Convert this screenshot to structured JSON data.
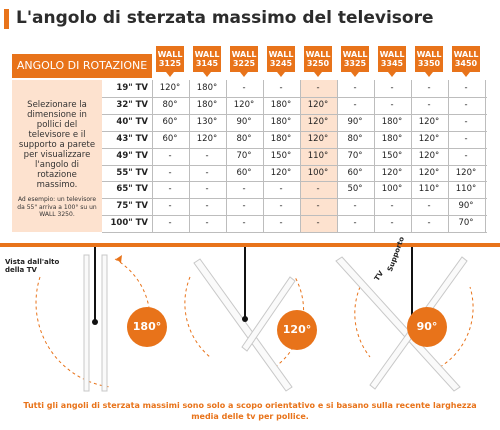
{
  "title": "L'angolo di sterzata massimo del televisore",
  "header_left": "ANGOLO DI ROTAZIONE",
  "walls": [
    {
      "line1": "WALL",
      "line2": "3125"
    },
    {
      "line1": "WALL",
      "line2": "3145"
    },
    {
      "line1": "WALL",
      "line2": "3225"
    },
    {
      "line1": "WALL",
      "line2": "3245"
    },
    {
      "line1": "WALL",
      "line2": "3250"
    },
    {
      "line1": "WALL",
      "line2": "3325"
    },
    {
      "line1": "WALL",
      "line2": "3345"
    },
    {
      "line1": "WALL",
      "line2": "3350"
    },
    {
      "line1": "WALL",
      "line2": "3450"
    }
  ],
  "highlight_index": 4,
  "description": "Selezionare la dimensione in pollici del televisore e il supporto a parete per visualizzare l'angolo di rotazione massimo.",
  "note": "Ad esempio: un televisore da 55\" arriva a 100° su un WALL 3250.",
  "rows": [
    {
      "size": "19\" TV",
      "values": [
        "120°",
        "180°",
        "-",
        "-",
        "-",
        "-",
        "-",
        "-",
        "-"
      ]
    },
    {
      "size": "32\" TV",
      "values": [
        "80°",
        "180°",
        "120°",
        "180°",
        "120°",
        "-",
        "-",
        "-",
        "-"
      ]
    },
    {
      "size": "40\" TV",
      "values": [
        "60°",
        "130°",
        "90°",
        "180°",
        "120°",
        "90°",
        "180°",
        "120°",
        "-"
      ]
    },
    {
      "size": "43\" TV",
      "values": [
        "60°",
        "120°",
        "80°",
        "180°",
        "120°",
        "80°",
        "180°",
        "120°",
        "-"
      ]
    },
    {
      "size": "49\" TV",
      "values": [
        "-",
        "-",
        "70°",
        "150°",
        "110°",
        "70°",
        "150°",
        "120°",
        "-"
      ]
    },
    {
      "size": "55\" TV",
      "values": [
        "-",
        "-",
        "60°",
        "120°",
        "100°",
        "60°",
        "120°",
        "120°",
        "120°"
      ]
    },
    {
      "size": "65\" TV",
      "values": [
        "-",
        "-",
        "-",
        "-",
        "-",
        "50°",
        "100°",
        "110°",
        "110°"
      ]
    },
    {
      "size": "75\" TV",
      "values": [
        "-",
        "-",
        "-",
        "-",
        "-",
        "-",
        "-",
        "-",
        "90°"
      ]
    },
    {
      "size": "100\" TV",
      "values": [
        "-",
        "-",
        "-",
        "-",
        "-",
        "-",
        "-",
        "-",
        "70°"
      ]
    }
  ],
  "top_view_label": "Vista dall'alto della TV",
  "tv_label": "TV",
  "support_label": "Supporto",
  "angles": [
    "180°",
    "120°",
    "90°"
  ],
  "footer": "Tutti gli angoli di sterzata massimi sono solo a scopo orientativo e si basano sulla recente larghezza media delle tv per pollice.",
  "colors": {
    "accent": "#e8731a",
    "highlight": "#fde2cf"
  }
}
